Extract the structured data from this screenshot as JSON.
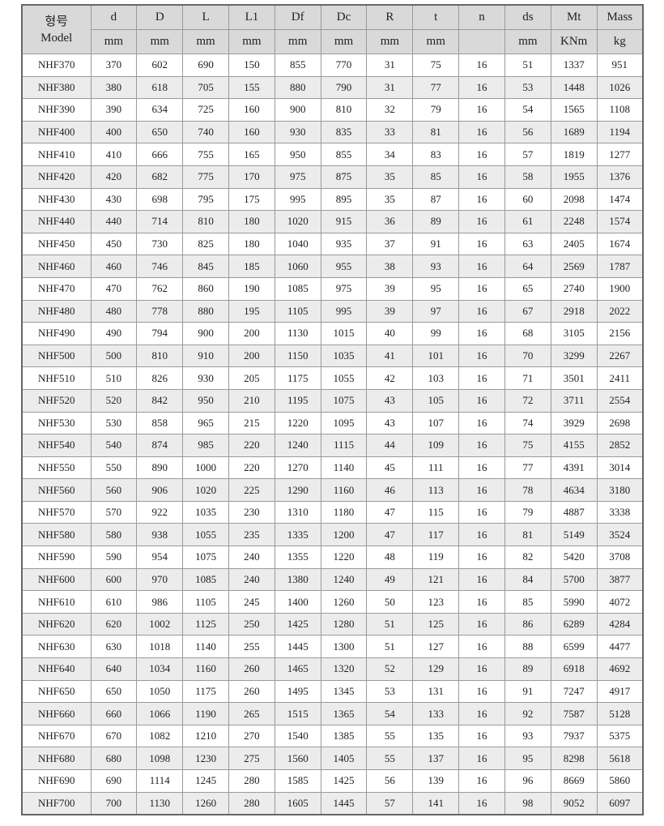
{
  "header": {
    "model_korean": "형号",
    "model": "Model",
    "columns": [
      "d",
      "D",
      "L",
      "L1",
      "Df",
      "Dc",
      "R",
      "t",
      "n",
      "ds",
      "Mt",
      "Mass"
    ],
    "units": [
      "mm",
      "mm",
      "mm",
      "mm",
      "mm",
      "mm",
      "mm",
      "mm",
      "",
      "mm",
      "KNm",
      "kg"
    ]
  },
  "rows": [
    [
      "NHF370",
      "370",
      "602",
      "690",
      "150",
      "855",
      "770",
      "31",
      "75",
      "16",
      "51",
      "1337",
      "951"
    ],
    [
      "NHF380",
      "380",
      "618",
      "705",
      "155",
      "880",
      "790",
      "31",
      "77",
      "16",
      "53",
      "1448",
      "1026"
    ],
    [
      "NHF390",
      "390",
      "634",
      "725",
      "160",
      "900",
      "810",
      "32",
      "79",
      "16",
      "54",
      "1565",
      "1108"
    ],
    [
      "NHF400",
      "400",
      "650",
      "740",
      "160",
      "930",
      "835",
      "33",
      "81",
      "16",
      "56",
      "1689",
      "1194"
    ],
    [
      "NHF410",
      "410",
      "666",
      "755",
      "165",
      "950",
      "855",
      "34",
      "83",
      "16",
      "57",
      "1819",
      "1277"
    ],
    [
      "NHF420",
      "420",
      "682",
      "775",
      "170",
      "975",
      "875",
      "35",
      "85",
      "16",
      "58",
      "1955",
      "1376"
    ],
    [
      "NHF430",
      "430",
      "698",
      "795",
      "175",
      "995",
      "895",
      "35",
      "87",
      "16",
      "60",
      "2098",
      "1474"
    ],
    [
      "NHF440",
      "440",
      "714",
      "810",
      "180",
      "1020",
      "915",
      "36",
      "89",
      "16",
      "61",
      "2248",
      "1574"
    ],
    [
      "NHF450",
      "450",
      "730",
      "825",
      "180",
      "1040",
      "935",
      "37",
      "91",
      "16",
      "63",
      "2405",
      "1674"
    ],
    [
      "NHF460",
      "460",
      "746",
      "845",
      "185",
      "1060",
      "955",
      "38",
      "93",
      "16",
      "64",
      "2569",
      "1787"
    ],
    [
      "NHF470",
      "470",
      "762",
      "860",
      "190",
      "1085",
      "975",
      "39",
      "95",
      "16",
      "65",
      "2740",
      "1900"
    ],
    [
      "NHF480",
      "480",
      "778",
      "880",
      "195",
      "1105",
      "995",
      "39",
      "97",
      "16",
      "67",
      "2918",
      "2022"
    ],
    [
      "NHF490",
      "490",
      "794",
      "900",
      "200",
      "1130",
      "1015",
      "40",
      "99",
      "16",
      "68",
      "3105",
      "2156"
    ],
    [
      "NHF500",
      "500",
      "810",
      "910",
      "200",
      "1150",
      "1035",
      "41",
      "101",
      "16",
      "70",
      "3299",
      "2267"
    ],
    [
      "NHF510",
      "510",
      "826",
      "930",
      "205",
      "1175",
      "1055",
      "42",
      "103",
      "16",
      "71",
      "3501",
      "2411"
    ],
    [
      "NHF520",
      "520",
      "842",
      "950",
      "210",
      "1195",
      "1075",
      "43",
      "105",
      "16",
      "72",
      "3711",
      "2554"
    ],
    [
      "NHF530",
      "530",
      "858",
      "965",
      "215",
      "1220",
      "1095",
      "43",
      "107",
      "16",
      "74",
      "3929",
      "2698"
    ],
    [
      "NHF540",
      "540",
      "874",
      "985",
      "220",
      "1240",
      "1115",
      "44",
      "109",
      "16",
      "75",
      "4155",
      "2852"
    ],
    [
      "NHF550",
      "550",
      "890",
      "1000",
      "220",
      "1270",
      "1140",
      "45",
      "111",
      "16",
      "77",
      "4391",
      "3014"
    ],
    [
      "NHF560",
      "560",
      "906",
      "1020",
      "225",
      "1290",
      "1160",
      "46",
      "113",
      "16",
      "78",
      "4634",
      "3180"
    ],
    [
      "NHF570",
      "570",
      "922",
      "1035",
      "230",
      "1310",
      "1180",
      "47",
      "115",
      "16",
      "79",
      "4887",
      "3338"
    ],
    [
      "NHF580",
      "580",
      "938",
      "1055",
      "235",
      "1335",
      "1200",
      "47",
      "117",
      "16",
      "81",
      "5149",
      "3524"
    ],
    [
      "NHF590",
      "590",
      "954",
      "1075",
      "240",
      "1355",
      "1220",
      "48",
      "119",
      "16",
      "82",
      "5420",
      "3708"
    ],
    [
      "NHF600",
      "600",
      "970",
      "1085",
      "240",
      "1380",
      "1240",
      "49",
      "121",
      "16",
      "84",
      "5700",
      "3877"
    ],
    [
      "NHF610",
      "610",
      "986",
      "1105",
      "245",
      "1400",
      "1260",
      "50",
      "123",
      "16",
      "85",
      "5990",
      "4072"
    ],
    [
      "NHF620",
      "620",
      "1002",
      "1125",
      "250",
      "1425",
      "1280",
      "51",
      "125",
      "16",
      "86",
      "6289",
      "4284"
    ],
    [
      "NHF630",
      "630",
      "1018",
      "1140",
      "255",
      "1445",
      "1300",
      "51",
      "127",
      "16",
      "88",
      "6599",
      "4477"
    ],
    [
      "NHF640",
      "640",
      "1034",
      "1160",
      "260",
      "1465",
      "1320",
      "52",
      "129",
      "16",
      "89",
      "6918",
      "4692"
    ],
    [
      "NHF650",
      "650",
      "1050",
      "1175",
      "260",
      "1495",
      "1345",
      "53",
      "131",
      "16",
      "91",
      "7247",
      "4917"
    ],
    [
      "NHF660",
      "660",
      "1066",
      "1190",
      "265",
      "1515",
      "1365",
      "54",
      "133",
      "16",
      "92",
      "7587",
      "5128"
    ],
    [
      "NHF670",
      "670",
      "1082",
      "1210",
      "270",
      "1540",
      "1385",
      "55",
      "135",
      "16",
      "93",
      "7937",
      "5375"
    ],
    [
      "NHF680",
      "680",
      "1098",
      "1230",
      "275",
      "1560",
      "1405",
      "55",
      "137",
      "16",
      "95",
      "8298",
      "5618"
    ],
    [
      "NHF690",
      "690",
      "1114",
      "1245",
      "280",
      "1585",
      "1425",
      "56",
      "139",
      "16",
      "96",
      "8669",
      "5860"
    ],
    [
      "NHF700",
      "700",
      "1130",
      "1260",
      "280",
      "1605",
      "1445",
      "57",
      "141",
      "16",
      "98",
      "9052",
      "6097"
    ]
  ]
}
